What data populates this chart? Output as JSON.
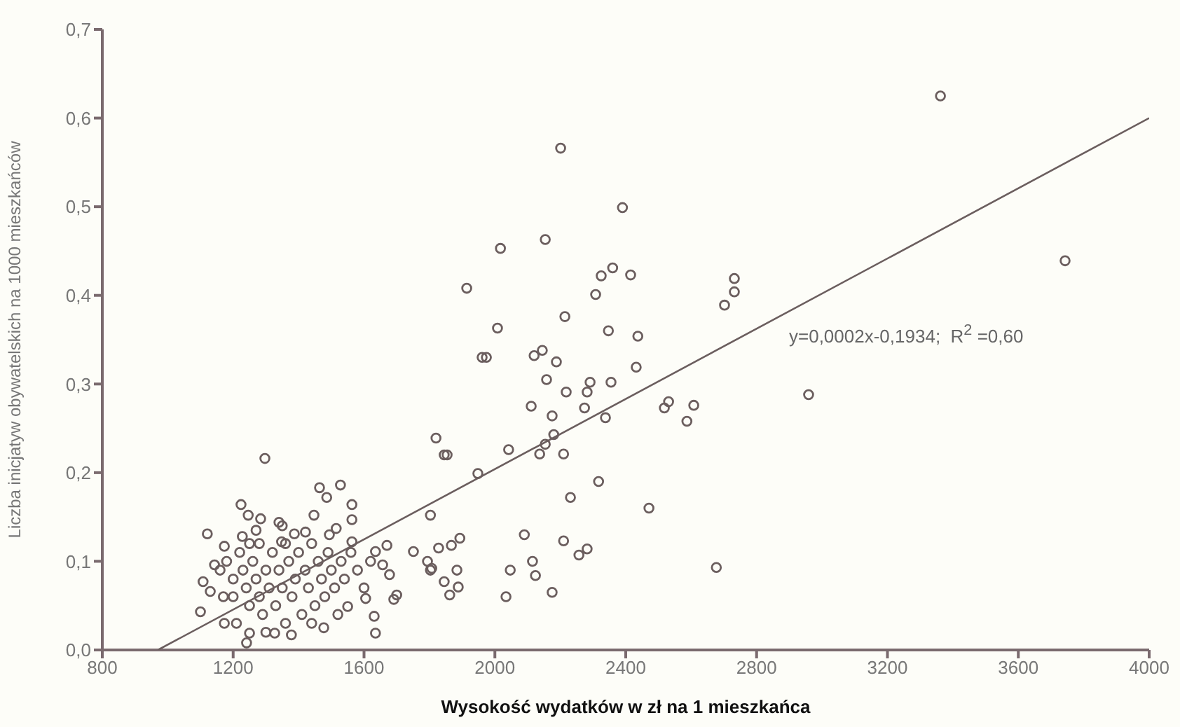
{
  "chart_data": {
    "type": "scatter",
    "xlabel": "Wysokość wydatków w zł na 1 mieszkańca",
    "ylabel": "Liczba inicjatyw obywatelskich na 1000 mieszkańców",
    "xlim": [
      800,
      4000
    ],
    "xticks": [
      800,
      1200,
      1600,
      2000,
      2400,
      2800,
      3200,
      3600,
      4000
    ],
    "ylim": [
      0,
      0.7
    ],
    "yticks": [
      {
        "value": 0,
        "label": "0,0"
      },
      {
        "value": 0.1,
        "label": "0,1"
      },
      {
        "value": 0.2,
        "label": "0,2"
      },
      {
        "value": 0.3,
        "label": "0,3"
      },
      {
        "value": 0.4,
        "label": "0,4"
      },
      {
        "value": 0.5,
        "label": "0,5"
      },
      {
        "value": 0.6,
        "label": "0,6"
      },
      {
        "value": 0.7,
        "label": "0,7"
      }
    ],
    "marker": "circle",
    "grid": false,
    "legend": false,
    "annotations": [
      "y=0,0002x-0,1934;  R$^{2}$ =0,60"
    ],
    "series": [
      {
        "color": "#6b5e5e",
        "x": [
          3362,
          3743,
          2959,
          2201,
          2390,
          2154,
          2017,
          1914,
          2360,
          2325,
          2415,
          2308,
          2732,
          2732,
          2702,
          2214,
          2008,
          2347,
          2437,
          1961,
          1974,
          2120,
          2145,
          2188,
          2432,
          2158,
          2291,
          2355,
          2218,
          2282,
          2111,
          2274,
          2531,
          2518,
          2608,
          2587,
          2175,
          2338,
          2180,
          1820,
          1845,
          1854,
          2042,
          2137,
          2154,
          2210,
          1948,
          1803,
          2317,
          2231,
          2471,
          2090,
          1893,
          1867,
          1828,
          2210,
          2282,
          2257,
          1794,
          1803,
          1884,
          2047,
          2115,
          2124,
          1845,
          1888,
          1862,
          2034,
          2175,
          2677,
          1297,
          1528,
          1464,
          1486,
          1224,
          1563,
          1246,
          1284,
          1447,
          1340,
          1563,
          1121,
          1228,
          1387,
          1421,
          1515,
          1494,
          1563,
          1173,
          1348,
          1670,
          1751,
          1635,
          1143,
          1657,
          1678,
          1807,
          1108,
          1130,
          1100,
          1173,
          1241,
          1250,
          1327,
          1378,
          1477,
          1550,
          1605,
          1635,
          1631,
          1700,
          1691,
          1180,
          1200,
          1200,
          1220,
          1230,
          1240,
          1250,
          1260,
          1270,
          1280,
          1280,
          1290,
          1300,
          1310,
          1320,
          1330,
          1340,
          1350,
          1360,
          1360,
          1370,
          1380,
          1390,
          1400,
          1410,
          1420,
          1430,
          1440,
          1450,
          1460,
          1470,
          1480,
          1490,
          1500,
          1510,
          1520,
          1530,
          1540,
          1560,
          1580,
          1600,
          1620,
          1250,
          1210,
          1300,
          1440,
          1350,
          1270,
          1160,
          1170
        ],
        "values": [
          0.625,
          0.439,
          0.288,
          0.566,
          0.499,
          0.463,
          0.453,
          0.408,
          0.431,
          0.422,
          0.423,
          0.401,
          0.419,
          0.404,
          0.389,
          0.376,
          0.363,
          0.36,
          0.354,
          0.33,
          0.33,
          0.332,
          0.338,
          0.325,
          0.319,
          0.305,
          0.302,
          0.302,
          0.291,
          0.291,
          0.275,
          0.273,
          0.28,
          0.273,
          0.276,
          0.258,
          0.264,
          0.262,
          0.243,
          0.239,
          0.22,
          0.22,
          0.226,
          0.221,
          0.232,
          0.221,
          0.199,
          0.152,
          0.19,
          0.172,
          0.16,
          0.13,
          0.126,
          0.118,
          0.115,
          0.123,
          0.114,
          0.107,
          0.1,
          0.09,
          0.09,
          0.09,
          0.1,
          0.084,
          0.077,
          0.071,
          0.062,
          0.06,
          0.065,
          0.093,
          0.216,
          0.186,
          0.183,
          0.172,
          0.164,
          0.164,
          0.152,
          0.148,
          0.152,
          0.144,
          0.147,
          0.131,
          0.128,
          0.131,
          0.133,
          0.137,
          0.13,
          0.122,
          0.117,
          0.122,
          0.118,
          0.111,
          0.111,
          0.096,
          0.096,
          0.085,
          0.092,
          0.077,
          0.066,
          0.043,
          0.03,
          0.008,
          0.019,
          0.019,
          0.017,
          0.025,
          0.049,
          0.058,
          0.019,
          0.038,
          0.062,
          0.057,
          0.1,
          0.08,
          0.06,
          0.11,
          0.09,
          0.07,
          0.05,
          0.1,
          0.08,
          0.06,
          0.12,
          0.04,
          0.09,
          0.07,
          0.11,
          0.05,
          0.09,
          0.07,
          0.12,
          0.03,
          0.1,
          0.06,
          0.08,
          0.11,
          0.04,
          0.09,
          0.07,
          0.12,
          0.05,
          0.1,
          0.08,
          0.06,
          0.11,
          0.09,
          0.07,
          0.04,
          0.1,
          0.08,
          0.11,
          0.09,
          0.07,
          0.1,
          0.12,
          0.03,
          0.02,
          0.03,
          0.14,
          0.135,
          0.09,
          0.06
        ]
      },
      {
        "type": "line",
        "color": "#6b5e5e",
        "marker": "none",
        "x": [
          970,
          4000
        ],
        "values": [
          0,
          0.6
        ]
      }
    ]
  }
}
